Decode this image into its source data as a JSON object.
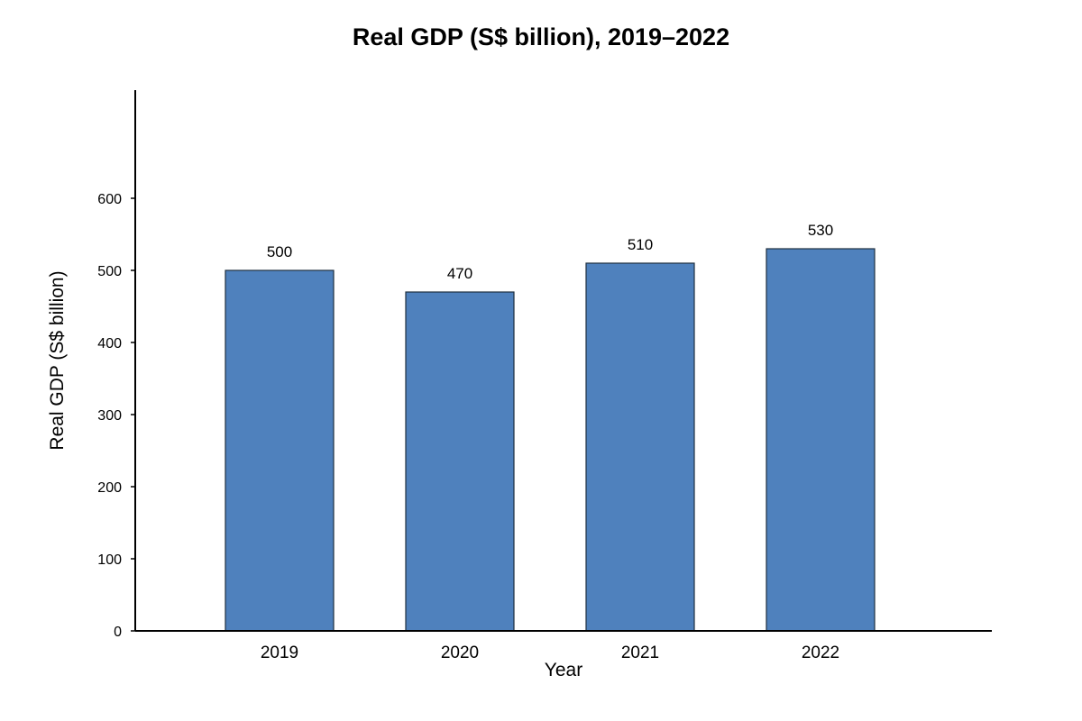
{
  "chart_data": {
    "type": "bar",
    "title": "Real GDP (S$ billion), 2019–2022",
    "xlabel": "Year",
    "ylabel": "Real GDP (S$ billion)",
    "categories": [
      "2019",
      "2020",
      "2021",
      "2022"
    ],
    "values": [
      500,
      470,
      510,
      530
    ],
    "data_labels": [
      "500",
      "470",
      "510",
      "530"
    ],
    "yticks": [
      0,
      100,
      200,
      300,
      400,
      500,
      600
    ],
    "ytick_labels": [
      "0",
      "100",
      "200",
      "300",
      "400",
      "500",
      "600"
    ],
    "ylim": [
      0,
      750
    ],
    "grid": false,
    "legend": "none",
    "bar_color": "#4f81bd",
    "bar_edge_color": "#1f2f3f"
  }
}
